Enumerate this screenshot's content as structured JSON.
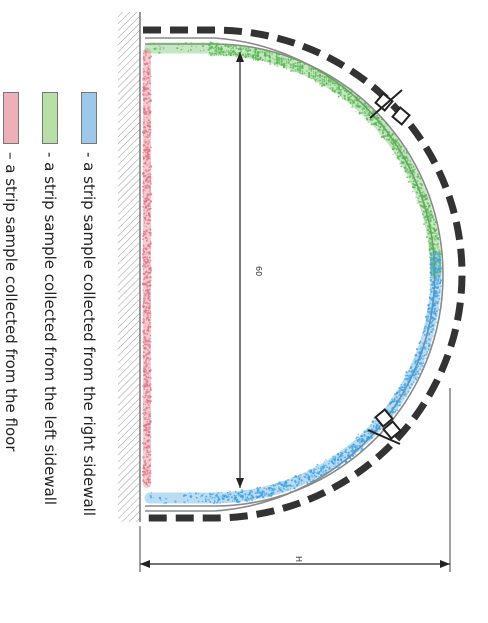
{
  "legend": [
    {
      "id": "right",
      "swatch_color": "#9cc9ea",
      "text": "- a strip sample collected from the right sidewall"
    },
    {
      "id": "left",
      "swatch_color": "#b9dfa9",
      "text": "- a strip sample collected from the left sidewall"
    },
    {
      "id": "floor",
      "swatch_color": "#eeb0b8",
      "text": "– a strip sample collected from the floor"
    }
  ],
  "dimensions": {
    "height_label": "60",
    "width_label": "H"
  },
  "colors": {
    "right_strip": "#3d9fe0",
    "left_strip": "#55b74d",
    "floor_strip": "#e0707e",
    "lining": "#333333",
    "inner_line": "#8a8a8a"
  }
}
